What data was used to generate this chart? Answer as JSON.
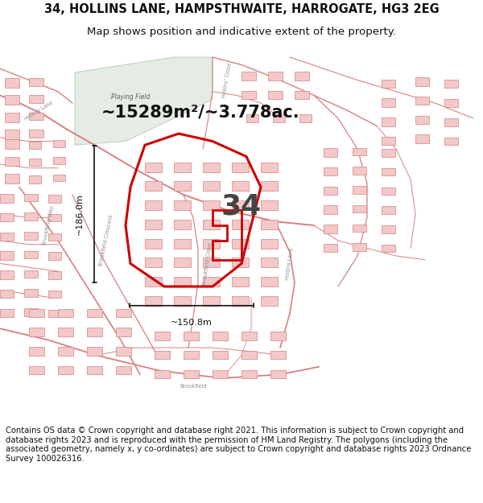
{
  "title_line1": "34, HOLLINS LANE, HAMPSTHWAITE, HARROGATE, HG3 2EG",
  "title_line2": "Map shows position and indicative extent of the property.",
  "area_text": "~15289m²/~3.778ac.",
  "label_34": "34",
  "dim_height": "~186.0m",
  "dim_width": "~150.8m",
  "footer_text": "Contains OS data © Crown copyright and database right 2021. This information is subject to Crown copyright and database rights 2023 and is reproduced with the permission of HM Land Registry. The polygons (including the associated geometry, namely x, y co-ordinates) are subject to Crown copyright and database rights 2023 Ordnance Survey 100026316.",
  "map_bg": "#ffffff",
  "playing_field_color": "#e4ece4",
  "street_color": "#d88080",
  "building_fill": "#f2c8c8",
  "building_edge": "#d88080",
  "highlight_color": "#cc0000",
  "title_fontsize": 10.5,
  "subtitle_fontsize": 9.5,
  "footer_fontsize": 7.2,
  "area_fontsize": 15,
  "label34_fontsize": 26,
  "dim_fontsize": 8
}
